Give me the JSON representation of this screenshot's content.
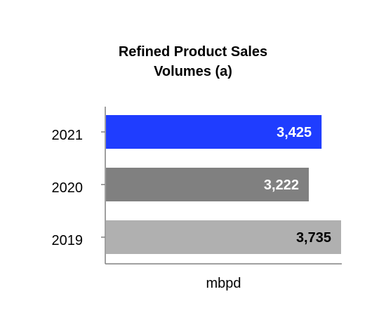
{
  "chart_data": {
    "type": "bar",
    "orientation": "horizontal",
    "title_lines": [
      "Refined Product Sales",
      "Volumes (a)"
    ],
    "categories": [
      "2021",
      "2020",
      "2019"
    ],
    "values": [
      3425,
      3222,
      3735
    ],
    "value_labels": [
      "3,425",
      "3,222",
      "3,735"
    ],
    "bar_colors": [
      "#1f3dff",
      "#808080",
      "#b0b0b0"
    ],
    "label_colors": [
      "#ffffff",
      "#ffffff",
      "#000000"
    ],
    "xlabel": "mbpd",
    "xlim": [
      0,
      3735
    ],
    "grid": false,
    "legend": "none"
  }
}
